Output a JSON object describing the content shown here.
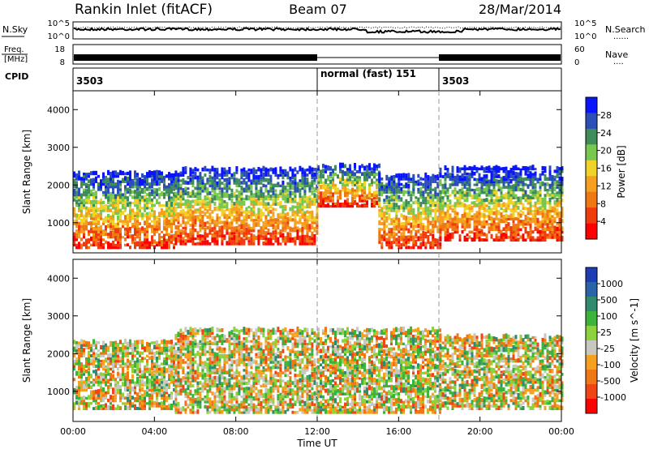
{
  "header": {
    "station": "Rankin Inlet (fitACF)",
    "beam": "Beam 07",
    "date": "28/Mar/2014"
  },
  "noise_panel": {
    "left_label": "N.Sky",
    "right_label": "N.Search",
    "right_legend": "......",
    "left_ticks": [
      "10^5",
      "10^0"
    ],
    "right_ticks": [
      "10^5",
      "10^0"
    ]
  },
  "freq_panel": {
    "left_label_line1": "Freq.",
    "left_label_line2": "[MHz]",
    "right_label": "Nave",
    "right_legend": "....",
    "left_ticks": [
      "18",
      "8"
    ],
    "right_ticks": [
      "60",
      "0"
    ]
  },
  "cpid_panel": {
    "label": "CPID",
    "segments": [
      {
        "start_hour": 0,
        "text": "3503"
      },
      {
        "start_hour": 12,
        "text": "normal (fast) 151"
      },
      {
        "start_hour": 18,
        "text": "3503"
      }
    ]
  },
  "x_axis": {
    "label": "Time UT",
    "ticks": [
      "00:00",
      "04:00",
      "08:00",
      "12:00",
      "16:00",
      "20:00",
      "00:00"
    ]
  },
  "chart_data": [
    {
      "type": "heatmap",
      "panel": "power",
      "ylabel": "Slant Range [km]",
      "yticks": [
        1000,
        2000,
        3000,
        4000
      ],
      "ylim": [
        200,
        4500
      ],
      "xlim_hours": [
        0,
        24
      ],
      "colorbar_label": "Power [dB]",
      "colorbar_ticks": [
        "4",
        "8",
        "12",
        "16",
        "20",
        "24",
        "28"
      ],
      "colorbar_colors": [
        "#0a14ff",
        "#2c4fb7",
        "#3d8c5a",
        "#78c850",
        "#f0d228",
        "#f5a01e",
        "#f07814",
        "#f03c0c",
        "#ff0000"
      ],
      "echo_bands_km": [
        {
          "from_hour": 0,
          "to_hour": 5,
          "from_km": 300,
          "to_km": 2300
        },
        {
          "from_hour": 5,
          "to_hour": 12,
          "from_km": 400,
          "to_km": 2400
        },
        {
          "from_hour": 12,
          "to_hour": 15,
          "from_km": 1400,
          "to_km": 2500
        },
        {
          "from_hour": 15,
          "to_hour": 18,
          "from_km": 300,
          "to_km": 2200
        },
        {
          "from_hour": 18,
          "to_hour": 24,
          "from_km": 500,
          "to_km": 2400
        }
      ]
    },
    {
      "type": "heatmap",
      "panel": "velocity",
      "ylabel": "Slant Range [km]",
      "yticks": [
        1000,
        2000,
        3000,
        4000
      ],
      "ylim": [
        200,
        4500
      ],
      "xlim_hours": [
        0,
        24
      ],
      "colorbar_label": "Velocity [m s^-1]",
      "colorbar_ticks": [
        "1000",
        "500",
        "100",
        "25",
        "-25",
        "-100",
        "-500",
        "-1000"
      ],
      "colorbar_colors": [
        "#1e3cb4",
        "#2a64a8",
        "#2f8a6e",
        "#3cb43c",
        "#8cd23c",
        "#c8c8c0",
        "#f5a01e",
        "#f07814",
        "#f04614",
        "#ff0000"
      ],
      "echo_bands_km": [
        {
          "from_hour": 0,
          "to_hour": 5,
          "from_km": 500,
          "to_km": 2300
        },
        {
          "from_hour": 5,
          "to_hour": 12,
          "from_km": 400,
          "to_km": 2600
        },
        {
          "from_hour": 12,
          "to_hour": 18,
          "from_km": 400,
          "to_km": 2600
        },
        {
          "from_hour": 18,
          "to_hour": 24,
          "from_km": 500,
          "to_km": 2400
        }
      ]
    }
  ]
}
